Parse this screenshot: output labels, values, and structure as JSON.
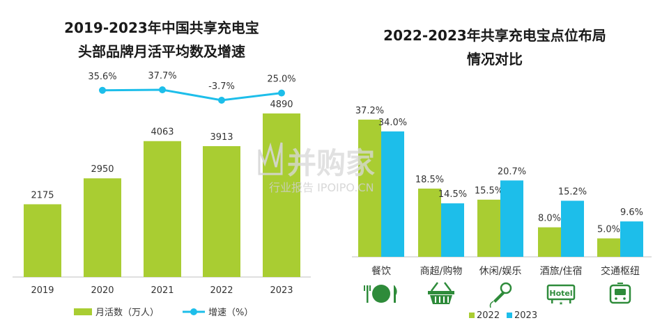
{
  "colors": {
    "green": "#a9cd32",
    "blue": "#1dbeea",
    "icon_green": "#2e8b3a",
    "axis": "#bfbfbf"
  },
  "watermark": {
    "main": "并购家",
    "sub": "行业报告 IPOIPO.CN"
  },
  "chart_data": [
    {
      "type": "bar",
      "title_lines": [
        "2019-2023年中国共享充电宝",
        "头部品牌月活平均数及增速"
      ],
      "categories": [
        "2019",
        "2020",
        "2021",
        "2022",
        "2023"
      ],
      "series": [
        {
          "name": "月活数（万人）",
          "type": "bar",
          "values": [
            2175,
            2950,
            4063,
            3913,
            4890
          ]
        },
        {
          "name": "增速（%）",
          "type": "line",
          "values": [
            null,
            35.6,
            37.7,
            -3.7,
            25.0
          ],
          "labels": [
            "",
            "35.6%",
            "37.7%",
            "-3.7%",
            "25.0%"
          ]
        }
      ],
      "legend": "bottom"
    },
    {
      "type": "bar",
      "title_lines": [
        "2022-2023年共享充电宝点位布局",
        "情况对比"
      ],
      "categories": [
        "餐饮",
        "商超/购物",
        "休闲/娱乐",
        "酒旅/住宿",
        "交通枢纽"
      ],
      "category_icons": [
        "dining-icon",
        "shopping-basket-icon",
        "microphone-icon",
        "hotel-icon",
        "train-icon"
      ],
      "hotel_icon_text": "Hotel",
      "series": [
        {
          "name": "2022",
          "values": [
            37.2,
            18.5,
            15.5,
            8.0,
            5.0
          ],
          "labels": [
            "37.2%",
            "18.5%",
            "15.5%",
            "8.0%",
            "5.0%"
          ]
        },
        {
          "name": "2023",
          "values": [
            34.0,
            14.5,
            20.7,
            15.2,
            9.6
          ],
          "labels": [
            "34.0%",
            "14.5%",
            "20.7%",
            "15.2%",
            "9.6%"
          ]
        }
      ],
      "legend": "bottom"
    }
  ]
}
